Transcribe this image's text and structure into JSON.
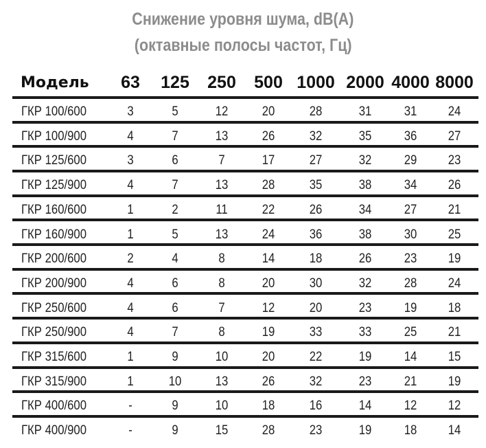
{
  "title": {
    "line1": "Снижение уровня шума, dB(A)",
    "line2": "(октавные полосы частот, Гц)"
  },
  "table": {
    "headers": [
      "Модель",
      "63",
      "125",
      "250",
      "500",
      "1000",
      "2000",
      "4000",
      "8000"
    ],
    "rows": [
      [
        "ГКР 100/600",
        "3",
        "5",
        "12",
        "20",
        "28",
        "31",
        "31",
        "24"
      ],
      [
        "ГКР 100/900",
        "4",
        "7",
        "13",
        "26",
        "32",
        "35",
        "36",
        "27"
      ],
      [
        "ГКР 125/600",
        "3",
        "6",
        "7",
        "17",
        "27",
        "32",
        "29",
        "23"
      ],
      [
        "ГКР 125/900",
        "4",
        "7",
        "13",
        "28",
        "35",
        "38",
        "34",
        "26"
      ],
      [
        "ГКР 160/600",
        "1",
        "2",
        "11",
        "22",
        "26",
        "34",
        "27",
        "21"
      ],
      [
        "ГКР 160/900",
        "1",
        "5",
        "13",
        "24",
        "36",
        "38",
        "30",
        "25"
      ],
      [
        "ГКР 200/600",
        "2",
        "4",
        "8",
        "14",
        "18",
        "26",
        "23",
        "19"
      ],
      [
        "ГКР 200/900",
        "4",
        "6",
        "8",
        "20",
        "30",
        "32",
        "28",
        "24"
      ],
      [
        "ГКР 250/600",
        "4",
        "6",
        "7",
        "12",
        "20",
        "23",
        "19",
        "18"
      ],
      [
        "ГКР 250/900",
        "4",
        "7",
        "8",
        "19",
        "33",
        "33",
        "25",
        "21"
      ],
      [
        "ГКР 315/600",
        "1",
        "9",
        "10",
        "20",
        "22",
        "19",
        "14",
        "15"
      ],
      [
        "ГКР 315/900",
        "1",
        "10",
        "13",
        "26",
        "32",
        "23",
        "21",
        "19"
      ],
      [
        "ГКР 400/600",
        "-",
        "9",
        "10",
        "18",
        "16",
        "14",
        "12",
        "12"
      ],
      [
        "ГКР 400/900",
        "-",
        "9",
        "15",
        "28",
        "23",
        "19",
        "18",
        "14"
      ]
    ]
  }
}
